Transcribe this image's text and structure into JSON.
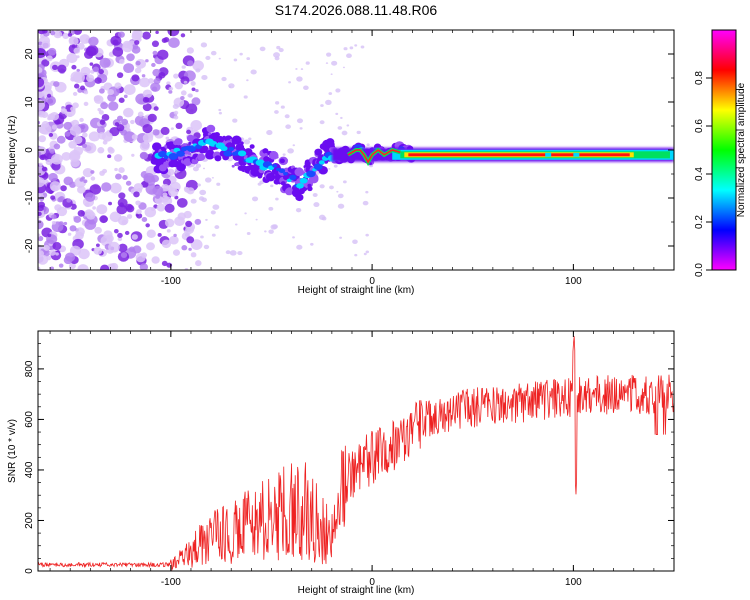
{
  "figure": {
    "title": "S174.2026.088.11.48.R06"
  },
  "chart_data": [
    {
      "type": "heatmap",
      "name": "spectrogram",
      "xlabel": "Height of straight line (km)",
      "ylabel": "Frequency (Hz)",
      "xlim": [
        -166,
        150
      ],
      "ylim": [
        -25,
        25
      ],
      "xticks": [
        -100,
        0,
        100
      ],
      "yticks": [
        -20,
        -10,
        0,
        10,
        20
      ],
      "colorbar": {
        "label": "Normalized spectral amplitude",
        "range": [
          0,
          1
        ],
        "ticks": [
          "0.0",
          "0.2",
          "0.4",
          "0.6",
          "0.8"
        ],
        "colors": [
          "#ff00ff",
          "#0000ff",
          "#00ffff",
          "#00ff00",
          "#ffff00",
          "#ff0000",
          "#ff00ff"
        ]
      },
      "trace": {
        "x": [
          -108,
          -100,
          -90,
          -82,
          -78,
          -72,
          -66,
          -60,
          -54,
          -48,
          -42,
          -36,
          -31,
          -27,
          -24,
          -20,
          -14,
          -10,
          -6,
          -3,
          -1,
          1,
          4,
          8,
          14,
          20,
          30,
          60,
          100,
          150
        ],
        "y": [
          -2,
          -1,
          0,
          2,
          1,
          0,
          -1,
          -2,
          -3,
          -4,
          -6,
          -7,
          -5,
          -3,
          -2,
          -1,
          -1,
          -1,
          0,
          -1,
          -2,
          -1,
          0,
          -1,
          0,
          -1,
          -1,
          -1,
          -1,
          -1
        ]
      }
    },
    {
      "type": "line",
      "name": "snr",
      "xlabel": "Height of straight line (km)",
      "ylabel": "SNR (10 * v/v)",
      "xlim": [
        -166,
        150
      ],
      "ylim": [
        0,
        950
      ],
      "xticks": [
        -100,
        0,
        100
      ],
      "yticks": [
        0,
        200,
        400,
        600,
        800
      ],
      "color": "#ee2222",
      "x": [
        -166,
        -100,
        -93,
        -85,
        -75,
        -65,
        -55,
        -45,
        -35,
        -22,
        -18,
        -13,
        -5,
        5,
        15,
        22,
        30,
        40,
        50,
        60,
        70,
        80,
        90,
        100,
        110,
        120,
        130,
        140,
        150
      ],
      "y": [
        25,
        25,
        55,
        110,
        140,
        170,
        195,
        220,
        250,
        150,
        240,
        360,
        420,
        470,
        530,
        580,
        610,
        630,
        645,
        655,
        660,
        670,
        680,
        690,
        700,
        700,
        700,
        700,
        700
      ]
    }
  ]
}
